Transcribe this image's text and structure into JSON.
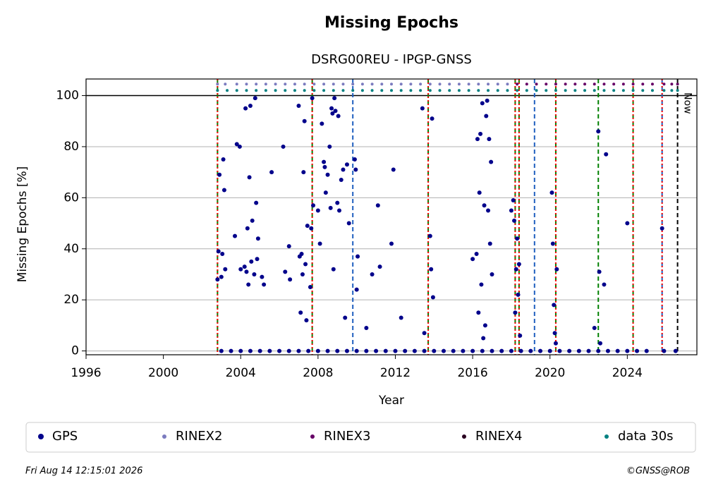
{
  "chart_data": {
    "type": "scatter",
    "title": "Missing Epochs",
    "subtitle": "DSRG00REU - IPGP-GNSS",
    "x_label": "Year",
    "y_label": "Missing Epochs [%]",
    "xlim": [
      1996,
      2027.6
    ],
    "ylim": [
      -1.5,
      106.5
    ],
    "xticks": [
      1996,
      2000,
      2004,
      2008,
      2012,
      2016,
      2020,
      2024
    ],
    "yticks": [
      0,
      20,
      40,
      60,
      80,
      100
    ],
    "grid": true,
    "reference_line": 100,
    "vlines": [
      {
        "x": 2002.8,
        "color": "#008000",
        "style": "dashed"
      },
      {
        "x": 2002.8,
        "color": "#ff0000",
        "style": "dotted"
      },
      {
        "x": 2007.7,
        "color": "#008000",
        "style": "dashed"
      },
      {
        "x": 2007.7,
        "color": "#ff0000",
        "style": "dotted"
      },
      {
        "x": 2009.8,
        "color": "#1f5fbf",
        "style": "dashed"
      },
      {
        "x": 2013.7,
        "color": "#008000",
        "style": "dashed"
      },
      {
        "x": 2013.7,
        "color": "#ff0000",
        "style": "dotted"
      },
      {
        "x": 2018.2,
        "color": "#008000",
        "style": "dashed"
      },
      {
        "x": 2018.2,
        "color": "#ff0000",
        "style": "dotted"
      },
      {
        "x": 2018.4,
        "color": "#008000",
        "style": "dashed"
      },
      {
        "x": 2018.4,
        "color": "#ff0000",
        "style": "dotted"
      },
      {
        "x": 2019.2,
        "color": "#1f5fbf",
        "style": "dashed"
      },
      {
        "x": 2020.3,
        "color": "#008000",
        "style": "dashed"
      },
      {
        "x": 2020.3,
        "color": "#ff0000",
        "style": "dotted"
      },
      {
        "x": 2022.5,
        "color": "#008000",
        "style": "dashed"
      },
      {
        "x": 2024.3,
        "color": "#008000",
        "style": "dashed"
      },
      {
        "x": 2024.3,
        "color": "#ff0000",
        "style": "dotted"
      },
      {
        "x": 2025.8,
        "color": "#1f5fbf",
        "style": "dashed"
      },
      {
        "x": 2025.8,
        "color": "#ff0000",
        "style": "dotted"
      },
      {
        "x": 2026.6,
        "color": "#000000",
        "style": "dashed"
      }
    ],
    "annotations": [
      {
        "text": "Now",
        "x": 2026.6,
        "y": 97
      }
    ],
    "series": [
      {
        "name": "GPS",
        "color": "#00008b",
        "marker_size": 3,
        "x": [
          2002.8,
          2002.85,
          2002.9,
          2003.0,
          2003.05,
          2003.1,
          2003.15,
          2003.2,
          2003.7,
          2003.8,
          2003.95,
          2004.0,
          2004.2,
          2004.25,
          2004.3,
          2004.35,
          2004.4,
          2004.45,
          2004.5,
          2004.55,
          2004.6,
          2004.7,
          2004.75,
          2004.8,
          2004.85,
          2004.9,
          2005.1,
          2005.2,
          2005.6,
          2006.2,
          2006.3,
          2006.5,
          2006.55,
          2007.0,
          2007.05,
          2007.1,
          2007.15,
          2007.2,
          2007.25,
          2007.3,
          2007.35,
          2007.4,
          2007.45,
          2007.6,
          2007.65,
          2007.7,
          2007.75,
          2008.0,
          2008.1,
          2008.2,
          2008.3,
          2008.35,
          2008.4,
          2008.5,
          2008.6,
          2008.65,
          2008.7,
          2008.75,
          2008.8,
          2008.85,
          2008.9,
          2009.0,
          2009.05,
          2009.1,
          2009.2,
          2009.3,
          2009.4,
          2009.5,
          2009.6,
          2009.9,
          2009.95,
          2010.0,
          2010.05,
          2010.5,
          2010.8,
          2011.1,
          2011.2,
          2011.8,
          2011.9,
          2012.3,
          2013.4,
          2013.5,
          2013.8,
          2013.85,
          2013.9,
          2013.95,
          2016.0,
          2016.2,
          2016.25,
          2016.3,
          2016.35,
          2016.4,
          2016.45,
          2016.5,
          2016.55,
          2016.6,
          2016.65,
          2016.7,
          2016.75,
          2016.8,
          2016.85,
          2016.9,
          2016.95,
          2017.0,
          2018.0,
          2018.1,
          2018.15,
          2018.2,
          2018.25,
          2018.3,
          2018.35,
          2018.4,
          2018.45,
          2020.1,
          2020.15,
          2020.2,
          2020.25,
          2020.3,
          2020.35,
          2022.3,
          2022.5,
          2022.55,
          2022.6,
          2022.8,
          2022.9,
          2024.0,
          2025.8,
          2003.0,
          2003.5,
          2004.0,
          2004.5,
          2005.0,
          2005.5,
          2006.0,
          2006.5,
          2007.0,
          2007.5,
          2008.0,
          2008.5,
          2009.0,
          2009.5,
          2010.0,
          2010.5,
          2011.0,
          2011.5,
          2012.0,
          2012.5,
          2013.0,
          2013.5,
          2014.0,
          2014.5,
          2015.0,
          2015.5,
          2016.0,
          2016.5,
          2017.0,
          2017.5,
          2018.0,
          2018.5,
          2019.0,
          2019.5,
          2020.0,
          2020.5,
          2021.0,
          2021.5,
          2022.0,
          2022.5,
          2023.0,
          2023.5,
          2024.0,
          2024.5,
          2025.0,
          2025.9,
          2026.5
        ],
        "values": [
          28,
          39,
          69,
          29,
          38,
          75,
          63,
          32,
          45,
          81,
          80,
          32,
          33,
          95,
          31,
          48,
          26,
          68,
          96,
          35,
          51,
          30,
          99,
          58,
          36,
          44,
          29,
          26,
          70,
          80,
          31,
          41,
          28,
          96,
          37,
          15,
          38,
          30,
          70,
          90,
          34,
          12,
          49,
          25,
          48,
          99,
          57,
          55,
          42,
          89,
          74,
          72,
          62,
          69,
          80,
          56,
          95,
          93,
          32,
          99,
          94,
          58,
          92,
          55,
          67,
          71,
          13,
          73,
          50,
          75,
          71,
          24,
          37,
          9,
          30,
          57,
          33,
          42,
          71,
          13,
          95,
          7,
          45,
          32,
          91,
          21,
          36,
          38,
          83,
          15,
          62,
          85,
          26,
          97,
          5,
          57,
          10,
          92,
          98,
          55,
          83,
          42,
          74,
          30,
          55,
          59,
          51,
          15,
          32,
          44,
          22,
          34,
          6,
          62,
          42,
          18,
          7,
          3,
          32,
          9,
          86,
          31,
          3,
          26,
          77,
          50,
          48,
          0,
          0,
          0,
          0,
          0,
          0,
          0,
          0,
          0,
          0,
          0,
          0,
          0,
          0,
          0,
          0,
          0,
          0,
          0,
          0,
          0,
          0,
          0,
          0,
          0,
          0,
          0,
          0,
          0,
          0,
          0,
          0,
          0,
          0,
          0,
          0,
          0,
          0,
          0,
          0,
          0,
          0,
          0,
          0,
          0,
          0,
          0
        ]
      },
      {
        "name": "RINEX2",
        "color": "#7b7bbf",
        "marker_size": 2,
        "x": [
          2002.8,
          2003.2,
          2003.8,
          2004.3,
          2004.8,
          2005.3,
          2005.8,
          2006.3,
          2006.8,
          2007.3,
          2007.8,
          2008.3,
          2008.8,
          2009.3,
          2009.8,
          2010.3,
          2010.8,
          2011.3,
          2011.8,
          2012.3,
          2012.8,
          2013.3,
          2013.8,
          2014.3,
          2014.8,
          2015.3,
          2015.8,
          2016.3,
          2016.8,
          2017.3,
          2017.8,
          2018.3
        ],
        "values": [
          104.5,
          104.5,
          104.5,
          104.5,
          104.5,
          104.5,
          104.5,
          104.5,
          104.5,
          104.5,
          104.5,
          104.5,
          104.5,
          104.5,
          104.5,
          104.5,
          104.5,
          104.5,
          104.5,
          104.5,
          104.5,
          104.5,
          104.5,
          104.5,
          104.5,
          104.5,
          104.5,
          104.5,
          104.5,
          104.5,
          104.5,
          104.5
        ]
      },
      {
        "name": "RINEX3",
        "color": "#660066",
        "marker_size": 2,
        "x": [
          2018.3,
          2018.8,
          2019.3,
          2019.8,
          2020.3,
          2020.8,
          2021.3,
          2021.8,
          2022.3,
          2022.8,
          2023.3,
          2023.8,
          2024.3,
          2024.8,
          2025.3,
          2025.9,
          2026.3,
          2026.6
        ],
        "values": [
          104.5,
          104.5,
          104.5,
          104.5,
          104.5,
          104.5,
          104.5,
          104.5,
          104.5,
          104.5,
          104.5,
          104.5,
          104.5,
          104.5,
          104.5,
          104.5,
          104.5,
          104.5
        ]
      },
      {
        "name": "RINEX4",
        "color": "#2a0020",
        "marker_size": 2,
        "x": [],
        "values": []
      },
      {
        "name": "data 30s",
        "color": "#008080",
        "marker_size": 2,
        "x": [
          2002.8,
          2003.3,
          2003.8,
          2004.3,
          2004.8,
          2005.3,
          2005.8,
          2006.3,
          2006.8,
          2007.3,
          2007.8,
          2008.3,
          2008.8,
          2009.3,
          2009.8,
          2010.3,
          2010.8,
          2011.3,
          2011.8,
          2012.3,
          2012.8,
          2013.3,
          2013.8,
          2014.3,
          2014.8,
          2015.3,
          2015.8,
          2016.3,
          2016.8,
          2017.3,
          2017.8,
          2018.3,
          2018.8,
          2019.3,
          2019.8,
          2020.3,
          2020.8,
          2021.3,
          2021.8,
          2022.3,
          2022.8,
          2023.3,
          2023.8,
          2024.3,
          2024.8,
          2025.3,
          2025.9,
          2026.3,
          2026.6
        ],
        "values": [
          102,
          102,
          102,
          102,
          102,
          102,
          102,
          102,
          102,
          102,
          102,
          102,
          102,
          102,
          102,
          102,
          102,
          102,
          102,
          102,
          102,
          102,
          102,
          102,
          102,
          102,
          102,
          102,
          102,
          102,
          102,
          102,
          102,
          102,
          102,
          102,
          102,
          102,
          102,
          102,
          102,
          102,
          102,
          102,
          102,
          102,
          102,
          102,
          102
        ]
      }
    ],
    "footer_left": "Fri Aug 14 12:15:01 2026",
    "footer_right": "©GNSS@ROB"
  }
}
